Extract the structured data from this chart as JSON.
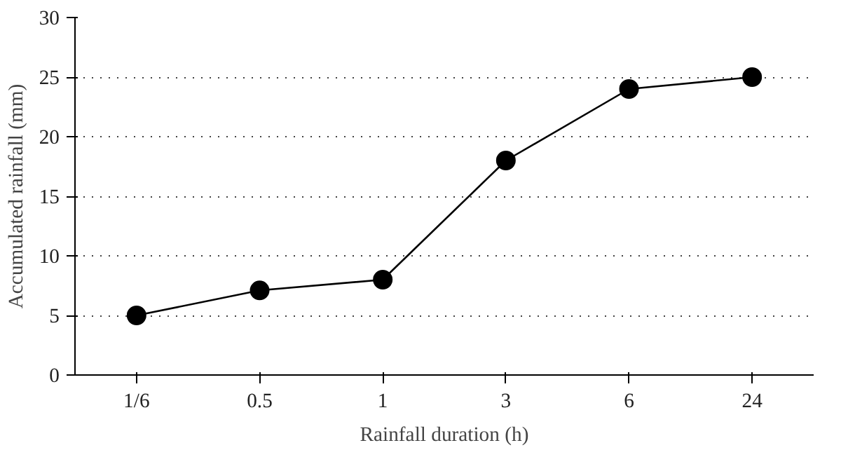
{
  "chart_data": {
    "type": "line",
    "xlabel": "Rainfall duration (h)",
    "ylabel": "Accumulated rainfall (mm)",
    "categories": [
      "1/6",
      "0.5",
      "1",
      "3",
      "6",
      "24"
    ],
    "series": [
      {
        "color": "#000000",
        "values": [
          5,
          7.1,
          8,
          18,
          24,
          25
        ]
      }
    ],
    "ylim": [
      0,
      30
    ],
    "yticks": [
      0,
      5,
      10,
      15,
      20,
      25,
      30
    ],
    "grid": "y",
    "marker": "circle",
    "line_style": "solid"
  }
}
